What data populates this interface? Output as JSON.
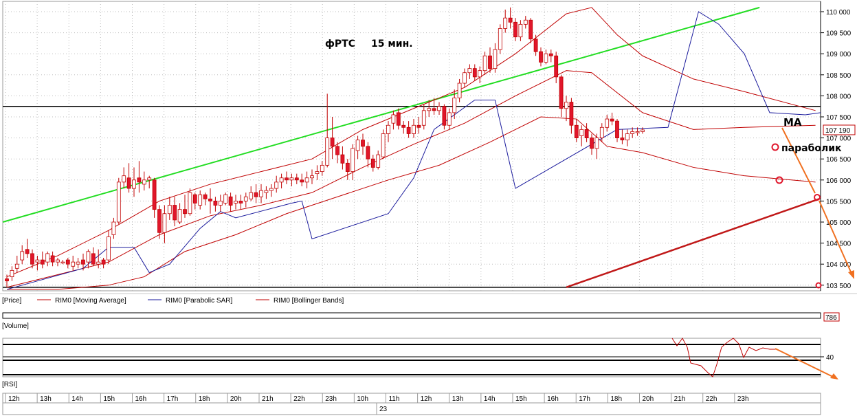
{
  "chart_title": "фРТС",
  "chart_timeframe": "15 мин.",
  "annotations": {
    "ma": "MA",
    "parabolic": "параболик"
  },
  "price_axis": {
    "ticks": [
      "110 000",
      "109 500",
      "109 000",
      "108 500",
      "108 000",
      "107 500",
      "107 000",
      "106 500",
      "106 000",
      "105 500",
      "105 000",
      "104 500",
      "104 000",
      "103 500"
    ],
    "last_price": "107 190"
  },
  "legend": {
    "price": "[Price]",
    "items": [
      {
        "label": "RIM0 [Moving Average]",
        "color": "#c00000"
      },
      {
        "label": "RIM0 [Parabolic SAR]",
        "color": "#1a1a9c"
      },
      {
        "label": "RIM0 [Bollinger Bands]",
        "color": "#c00000"
      }
    ]
  },
  "volume_panel": {
    "label": "[Volume]",
    "value": "786"
  },
  "rsi_panel": {
    "label": "[RSI]",
    "level": "40"
  },
  "time_axis": {
    "hours": [
      "12h",
      "13h",
      "14h",
      "15h",
      "16h",
      "17h",
      "18h",
      "20h",
      "21h",
      "22h",
      "23h",
      "10h",
      "11h",
      "12h",
      "13h",
      "14h",
      "15h",
      "16h",
      "17h",
      "18h",
      "20h",
      "21h",
      "22h",
      "23h"
    ],
    "date": "23"
  },
  "colors": {
    "up_candle": "#ffffff",
    "down_candle": "#e0162b",
    "candle_outline": "#c00000",
    "trend_green": "#22dd22",
    "trend_red": "#c01818",
    "arrow": "#f07020",
    "sar": "#1a1a9c",
    "band": "#c00000"
  },
  "chart_data": {
    "type": "candlestick",
    "y_range": [
      103450,
      110100
    ],
    "candles": [
      {
        "o": 103650,
        "c": 103600,
        "h": 103750,
        "l": 103450
      },
      {
        "o": 103700,
        "c": 103850,
        "h": 103950,
        "l": 103600
      },
      {
        "o": 103900,
        "c": 104000,
        "h": 104200,
        "l": 103800
      },
      {
        "o": 104100,
        "c": 104300,
        "h": 104450,
        "l": 104000
      },
      {
        "o": 104350,
        "c": 104250,
        "h": 104600,
        "l": 104150
      },
      {
        "o": 104250,
        "c": 104000,
        "h": 104350,
        "l": 103900
      },
      {
        "o": 104050,
        "c": 104100,
        "h": 104200,
        "l": 103850
      },
      {
        "o": 104100,
        "c": 104000,
        "h": 104300,
        "l": 103900
      },
      {
        "o": 104050,
        "c": 104250,
        "h": 104300,
        "l": 103950
      },
      {
        "o": 104200,
        "c": 104050,
        "h": 104300,
        "l": 103950
      },
      {
        "o": 104050,
        "c": 104100,
        "h": 104150,
        "l": 103950
      },
      {
        "o": 104050,
        "c": 104050,
        "h": 104100,
        "l": 104000
      },
      {
        "o": 104100,
        "c": 104000,
        "h": 104150,
        "l": 103900
      },
      {
        "o": 103950,
        "c": 104050,
        "h": 104200,
        "l": 103850
      },
      {
        "o": 104000,
        "c": 104050,
        "h": 104150,
        "l": 103900
      },
      {
        "o": 104100,
        "c": 104000,
        "h": 104250,
        "l": 103850
      },
      {
        "o": 104050,
        "c": 104300,
        "h": 104350,
        "l": 103900
      },
      {
        "o": 104250,
        "c": 104000,
        "h": 104400,
        "l": 103950
      },
      {
        "o": 104000,
        "c": 104050,
        "h": 104350,
        "l": 103900
      },
      {
        "o": 104100,
        "c": 104000,
        "h": 104150,
        "l": 103900
      },
      {
        "o": 104100,
        "c": 104650,
        "h": 104800,
        "l": 104000
      },
      {
        "o": 104700,
        "c": 105000,
        "h": 105100,
        "l": 104600
      },
      {
        "o": 105000,
        "c": 105950,
        "h": 106050,
        "l": 104950
      },
      {
        "o": 105950,
        "c": 106100,
        "h": 106300,
        "l": 105800
      },
      {
        "o": 106050,
        "c": 105800,
        "h": 106400,
        "l": 105700
      },
      {
        "o": 105800,
        "c": 106000,
        "h": 106300,
        "l": 105600
      },
      {
        "o": 106050,
        "c": 105950,
        "h": 106450,
        "l": 105700
      },
      {
        "o": 105900,
        "c": 106000,
        "h": 106200,
        "l": 105750
      },
      {
        "o": 106000,
        "c": 106050,
        "h": 106100,
        "l": 105800
      },
      {
        "o": 106000,
        "c": 105300,
        "h": 106050,
        "l": 105100
      },
      {
        "o": 105300,
        "c": 104750,
        "h": 105400,
        "l": 104600
      },
      {
        "o": 104750,
        "c": 105200,
        "h": 105400,
        "l": 104500
      },
      {
        "o": 105200,
        "c": 105400,
        "h": 105600,
        "l": 105050
      },
      {
        "o": 105400,
        "c": 105050,
        "h": 105600,
        "l": 104900
      },
      {
        "o": 105000,
        "c": 105300,
        "h": 105450,
        "l": 104950
      },
      {
        "o": 105300,
        "c": 105200,
        "h": 105650,
        "l": 105100
      },
      {
        "o": 105200,
        "c": 105700,
        "h": 105800,
        "l": 105150
      },
      {
        "o": 105650,
        "c": 105450,
        "h": 105700,
        "l": 105300
      },
      {
        "o": 105400,
        "c": 105650,
        "h": 105750,
        "l": 105300
      },
      {
        "o": 105650,
        "c": 105550,
        "h": 105700,
        "l": 105400
      },
      {
        "o": 105550,
        "c": 105500,
        "h": 105800,
        "l": 105200
      },
      {
        "o": 105500,
        "c": 105400,
        "h": 105600,
        "l": 105250
      },
      {
        "o": 105400,
        "c": 105500,
        "h": 105650,
        "l": 105250
      },
      {
        "o": 105450,
        "c": 105650,
        "h": 105700,
        "l": 105400
      },
      {
        "o": 105600,
        "c": 105400,
        "h": 105700,
        "l": 105250
      },
      {
        "o": 105450,
        "c": 105500,
        "h": 105650,
        "l": 105300
      },
      {
        "o": 105500,
        "c": 105450,
        "h": 105650,
        "l": 105300
      },
      {
        "o": 105500,
        "c": 105600,
        "h": 105700,
        "l": 105350
      },
      {
        "o": 105550,
        "c": 105700,
        "h": 105850,
        "l": 105500
      },
      {
        "o": 105700,
        "c": 105600,
        "h": 105900,
        "l": 105450
      },
      {
        "o": 105600,
        "c": 105750,
        "h": 105900,
        "l": 105450
      },
      {
        "o": 105700,
        "c": 105750,
        "h": 105850,
        "l": 105550
      },
      {
        "o": 105750,
        "c": 105800,
        "h": 105900,
        "l": 105600
      },
      {
        "o": 105800,
        "c": 105950,
        "h": 106100,
        "l": 105700
      },
      {
        "o": 105950,
        "c": 106050,
        "h": 106150,
        "l": 105800
      },
      {
        "o": 106050,
        "c": 106000,
        "h": 106200,
        "l": 105900
      },
      {
        "o": 106000,
        "c": 106050,
        "h": 106150,
        "l": 105850
      },
      {
        "o": 106050,
        "c": 106000,
        "h": 106150,
        "l": 105900
      },
      {
        "o": 106000,
        "c": 105950,
        "h": 106150,
        "l": 105850
      },
      {
        "o": 105950,
        "c": 106050,
        "h": 106200,
        "l": 105800
      },
      {
        "o": 106050,
        "c": 106100,
        "h": 106250,
        "l": 105900
      },
      {
        "o": 106150,
        "c": 106200,
        "h": 106350,
        "l": 106000
      },
      {
        "o": 106200,
        "c": 106350,
        "h": 106450,
        "l": 106100
      },
      {
        "o": 106350,
        "c": 107000,
        "h": 108050,
        "l": 106300
      },
      {
        "o": 107000,
        "c": 106800,
        "h": 107500,
        "l": 106500
      },
      {
        "o": 106800,
        "c": 106600,
        "h": 106900,
        "l": 106400
      },
      {
        "o": 106600,
        "c": 106400,
        "h": 106800,
        "l": 106250
      },
      {
        "o": 106400,
        "c": 106200,
        "h": 106500,
        "l": 106000
      },
      {
        "o": 106200,
        "c": 106750,
        "h": 106850,
        "l": 106000
      },
      {
        "o": 106700,
        "c": 106950,
        "h": 107050,
        "l": 106500
      },
      {
        "o": 106950,
        "c": 106800,
        "h": 107100,
        "l": 106600
      },
      {
        "o": 106800,
        "c": 106500,
        "h": 106900,
        "l": 106300
      },
      {
        "o": 106500,
        "c": 106300,
        "h": 106600,
        "l": 106200
      },
      {
        "o": 106300,
        "c": 106600,
        "h": 106700,
        "l": 106250
      },
      {
        "o": 106550,
        "c": 107100,
        "h": 107200,
        "l": 106500
      },
      {
        "o": 107100,
        "c": 107300,
        "h": 107400,
        "l": 106900
      },
      {
        "o": 107350,
        "c": 107550,
        "h": 107650,
        "l": 107200
      },
      {
        "o": 107600,
        "c": 107300,
        "h": 107700,
        "l": 107200
      },
      {
        "o": 107300,
        "c": 107250,
        "h": 107400,
        "l": 107100
      },
      {
        "o": 107250,
        "c": 107100,
        "h": 107400,
        "l": 107000
      },
      {
        "o": 107100,
        "c": 107300,
        "h": 107450,
        "l": 107000
      },
      {
        "o": 107300,
        "c": 107250,
        "h": 107500,
        "l": 107100
      },
      {
        "o": 107300,
        "c": 107650,
        "h": 107800,
        "l": 107200
      },
      {
        "o": 107650,
        "c": 107700,
        "h": 107900,
        "l": 107500
      },
      {
        "o": 107700,
        "c": 107650,
        "h": 107950,
        "l": 107550
      },
      {
        "o": 107650,
        "c": 107750,
        "h": 107850,
        "l": 107550
      },
      {
        "o": 107750,
        "c": 107300,
        "h": 107800,
        "l": 107200
      },
      {
        "o": 107300,
        "c": 107600,
        "h": 107700,
        "l": 107200
      },
      {
        "o": 107600,
        "c": 107950,
        "h": 108150,
        "l": 107450
      },
      {
        "o": 107950,
        "c": 108300,
        "h": 108400,
        "l": 107850
      },
      {
        "o": 108300,
        "c": 108550,
        "h": 108650,
        "l": 108200
      },
      {
        "o": 108550,
        "c": 108650,
        "h": 108750,
        "l": 108400
      },
      {
        "o": 108650,
        "c": 108450,
        "h": 108750,
        "l": 108350
      },
      {
        "o": 108450,
        "c": 108600,
        "h": 108700,
        "l": 108300
      },
      {
        "o": 108600,
        "c": 108950,
        "h": 109050,
        "l": 108500
      },
      {
        "o": 108950,
        "c": 108650,
        "h": 109150,
        "l": 108550
      },
      {
        "o": 108650,
        "c": 109100,
        "h": 109250,
        "l": 108550
      },
      {
        "o": 109100,
        "c": 109600,
        "h": 109700,
        "l": 109000
      },
      {
        "o": 109600,
        "c": 109850,
        "h": 110050,
        "l": 109500
      },
      {
        "o": 109850,
        "c": 109750,
        "h": 110100,
        "l": 109600
      },
      {
        "o": 109750,
        "c": 109400,
        "h": 109850,
        "l": 109300
      },
      {
        "o": 109400,
        "c": 109700,
        "h": 109800,
        "l": 109300
      },
      {
        "o": 109700,
        "c": 109800,
        "h": 109900,
        "l": 109600
      },
      {
        "o": 109800,
        "c": 109350,
        "h": 109850,
        "l": 109250
      },
      {
        "o": 109350,
        "c": 109050,
        "h": 109450,
        "l": 108950
      },
      {
        "o": 109050,
        "c": 108800,
        "h": 109150,
        "l": 108700
      },
      {
        "o": 108800,
        "c": 109000,
        "h": 109100,
        "l": 108750
      },
      {
        "o": 109000,
        "c": 108950,
        "h": 109100,
        "l": 108800
      },
      {
        "o": 108950,
        "c": 108450,
        "h": 109050,
        "l": 108300
      },
      {
        "o": 108450,
        "c": 107700,
        "h": 108500,
        "l": 107500
      },
      {
        "o": 107700,
        "c": 107850,
        "h": 108000,
        "l": 107400
      },
      {
        "o": 107850,
        "c": 107300,
        "h": 107950,
        "l": 107100
      },
      {
        "o": 107300,
        "c": 107000,
        "h": 107450,
        "l": 106900
      },
      {
        "o": 107050,
        "c": 107200,
        "h": 107300,
        "l": 106800
      },
      {
        "o": 107200,
        "c": 107000,
        "h": 107350,
        "l": 106900
      },
      {
        "o": 107000,
        "c": 106750,
        "h": 107100,
        "l": 106600
      },
      {
        "o": 106750,
        "c": 107000,
        "h": 107100,
        "l": 106500
      },
      {
        "o": 107000,
        "c": 107250,
        "h": 107350,
        "l": 106900
      },
      {
        "o": 107250,
        "c": 107450,
        "h": 107550,
        "l": 107150
      },
      {
        "o": 107450,
        "c": 107400,
        "h": 107600,
        "l": 107300
      },
      {
        "o": 107400,
        "c": 107000,
        "h": 107450,
        "l": 106900
      },
      {
        "o": 107000,
        "c": 106950,
        "h": 107200,
        "l": 106850
      },
      {
        "o": 106950,
        "c": 107100,
        "h": 107200,
        "l": 106800
      },
      {
        "o": 107100,
        "c": 107150,
        "h": 107250,
        "l": 107000
      },
      {
        "o": 107150,
        "c": 107150,
        "h": 107250,
        "l": 107050
      },
      {
        "o": 107150,
        "c": 107190,
        "h": 107250,
        "l": 107100
      }
    ],
    "moving_average": [
      [
        0,
        103450
      ],
      [
        10,
        103750
      ],
      [
        20,
        104050
      ],
      [
        30,
        104700
      ],
      [
        40,
        105150
      ],
      [
        50,
        105400
      ],
      [
        60,
        105700
      ],
      [
        70,
        106300
      ],
      [
        80,
        106850
      ],
      [
        90,
        107350
      ],
      [
        100,
        108000
      ],
      [
        110,
        108600
      ],
      [
        115,
        108550
      ],
      [
        125,
        107600
      ],
      [
        135,
        107200
      ],
      [
        145,
        107250
      ],
      [
        159,
        107300
      ]
    ],
    "bollinger_upper": [
      [
        0,
        103700
      ],
      [
        10,
        104200
      ],
      [
        20,
        104800
      ],
      [
        30,
        105500
      ],
      [
        40,
        105900
      ],
      [
        50,
        106200
      ],
      [
        60,
        106500
      ],
      [
        70,
        107200
      ],
      [
        80,
        107700
      ],
      [
        90,
        108200
      ],
      [
        100,
        109000
      ],
      [
        110,
        109950
      ],
      [
        115,
        110100
      ],
      [
        120,
        109450
      ],
      [
        125,
        108950
      ],
      [
        135,
        108400
      ],
      [
        145,
        108100
      ],
      [
        159,
        107650
      ]
    ],
    "bollinger_lower": [
      [
        0,
        103400
      ],
      [
        10,
        103400
      ],
      [
        20,
        103500
      ],
      [
        27,
        103700
      ],
      [
        35,
        104300
      ],
      [
        45,
        104700
      ],
      [
        55,
        105200
      ],
      [
        65,
        105600
      ],
      [
        75,
        106000
      ],
      [
        85,
        106350
      ],
      [
        95,
        106900
      ],
      [
        105,
        107500
      ],
      [
        112,
        107450
      ],
      [
        118,
        106800
      ],
      [
        125,
        106650
      ],
      [
        135,
        106300
      ],
      [
        145,
        106100
      ],
      [
        159,
        105950
      ]
    ],
    "parabolic_sar": [
      [
        0,
        103400
      ],
      [
        15,
        103900
      ],
      [
        20,
        104400
      ],
      [
        25,
        104400
      ],
      [
        28,
        103800
      ],
      [
        32,
        104000
      ],
      [
        38,
        104850
      ],
      [
        42,
        105250
      ],
      [
        45,
        105100
      ],
      [
        56,
        105450
      ],
      [
        58,
        105500
      ],
      [
        60,
        104600
      ],
      [
        75,
        105200
      ],
      [
        80,
        106050
      ],
      [
        84,
        107200
      ],
      [
        92,
        107900
      ],
      [
        96,
        107900
      ],
      [
        100,
        105800
      ],
      [
        120,
        107200
      ],
      [
        130,
        107250
      ],
      [
        136,
        110000
      ],
      [
        140,
        109700
      ],
      [
        145,
        109000
      ],
      [
        150,
        107600
      ],
      [
        157,
        107550
      ],
      [
        160,
        107600
      ]
    ],
    "trend_green": [
      [
        0,
        105000
      ],
      [
        148,
        110100
      ]
    ],
    "trend_red": [
      [
        110,
        103450
      ],
      [
        159,
        105550
      ]
    ],
    "horizontal_levels": [
      107750,
      103450
    ]
  }
}
